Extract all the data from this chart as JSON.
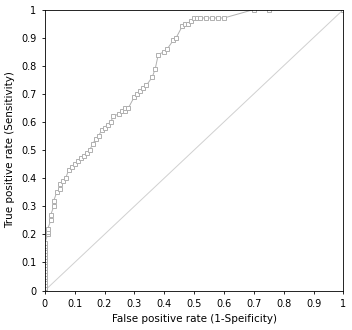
{
  "title": "",
  "xlabel": "False positive rate (1-Speificity)",
  "ylabel": "True positive rate (Sensitivity)",
  "xlim": [
    0,
    1
  ],
  "ylim": [
    0,
    1
  ],
  "xticks": [
    0,
    0.1,
    0.2,
    0.3,
    0.4,
    0.5,
    0.6,
    0.7,
    0.8,
    0.9,
    1
  ],
  "yticks": [
    0,
    0.1,
    0.2,
    0.3,
    0.4,
    0.5,
    0.6,
    0.7,
    0.8,
    0.9,
    1
  ],
  "line_color": "#b0b0b0",
  "marker_facecolor": "#ffffff",
  "marker_edgecolor": "#b0b0b0",
  "diagonal_color": "#d0d0d0",
  "roc_x": [
    0.0,
    0.0,
    0.0,
    0.0,
    0.0,
    0.0,
    0.0,
    0.0,
    0.0,
    0.0,
    0.0,
    0.0,
    0.0,
    0.0,
    0.0,
    0.0,
    0.0,
    0.0,
    0.01,
    0.01,
    0.01,
    0.02,
    0.02,
    0.03,
    0.03,
    0.04,
    0.05,
    0.05,
    0.06,
    0.07,
    0.08,
    0.09,
    0.1,
    0.11,
    0.12,
    0.13,
    0.14,
    0.15,
    0.16,
    0.17,
    0.18,
    0.19,
    0.2,
    0.21,
    0.22,
    0.23,
    0.25,
    0.26,
    0.27,
    0.27,
    0.28,
    0.3,
    0.31,
    0.32,
    0.33,
    0.34,
    0.36,
    0.37,
    0.38,
    0.4,
    0.41,
    0.43,
    0.44,
    0.46,
    0.47,
    0.48,
    0.49,
    0.5,
    0.51,
    0.52,
    0.54,
    0.56,
    0.58,
    0.6,
    0.7,
    0.75,
    1.0
  ],
  "roc_y": [
    0.0,
    0.01,
    0.02,
    0.03,
    0.04,
    0.05,
    0.06,
    0.07,
    0.08,
    0.09,
    0.1,
    0.11,
    0.12,
    0.13,
    0.14,
    0.15,
    0.16,
    0.17,
    0.2,
    0.21,
    0.22,
    0.25,
    0.27,
    0.3,
    0.32,
    0.35,
    0.36,
    0.38,
    0.39,
    0.4,
    0.43,
    0.44,
    0.45,
    0.46,
    0.47,
    0.48,
    0.49,
    0.5,
    0.52,
    0.54,
    0.55,
    0.57,
    0.58,
    0.59,
    0.6,
    0.62,
    0.63,
    0.64,
    0.64,
    0.65,
    0.65,
    0.69,
    0.7,
    0.71,
    0.72,
    0.73,
    0.76,
    0.79,
    0.84,
    0.85,
    0.86,
    0.89,
    0.9,
    0.94,
    0.95,
    0.95,
    0.96,
    0.97,
    0.97,
    0.97,
    0.97,
    0.97,
    0.97,
    0.97,
    1.0,
    1.0,
    1.0
  ]
}
